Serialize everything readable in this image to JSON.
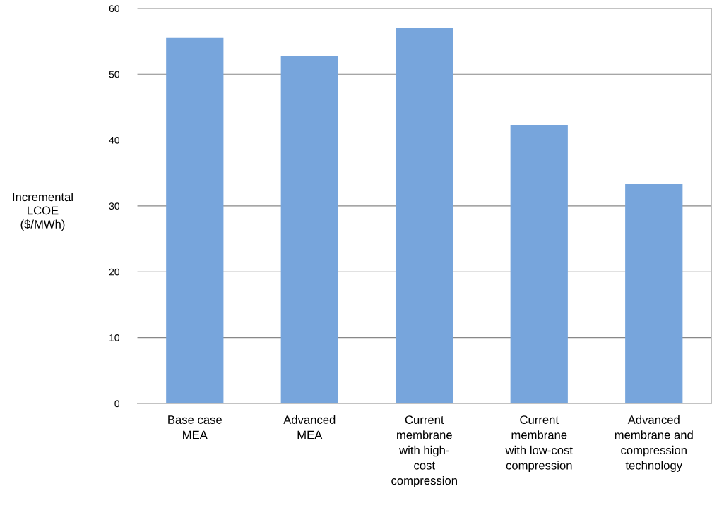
{
  "chart_data": {
    "type": "bar",
    "ylabel": "Incremental\nLCOE\n($/MWh)",
    "categories": [
      "Base case\nMEA",
      "Advanced\nMEA",
      "Current\nmembrane\nwith high-\ncost\ncompression",
      "Current\nmembrane\nwith low-cost\ncompression",
      "Advanced\nmembrane and\ncompression\ntechnology"
    ],
    "values": [
      55.5,
      52.8,
      57.0,
      42.3,
      33.3
    ],
    "color": "#77a5dc",
    "ylim": [
      0,
      60
    ],
    "yticks": [
      0,
      10,
      20,
      30,
      40,
      50,
      60
    ],
    "grid": "y"
  }
}
